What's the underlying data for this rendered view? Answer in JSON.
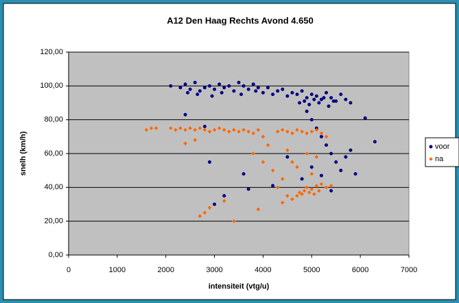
{
  "chart_data": {
    "type": "scatter",
    "title": "A12 Den Haag Rechts Avond  4.650",
    "x_label": "intensiteit (vtg/u)",
    "y_label": "snelh (km/h)",
    "xlim": [
      0,
      7000
    ],
    "xticks": [
      0,
      1000,
      2000,
      3000,
      4000,
      5000,
      6000,
      7000
    ],
    "ylim": [
      0,
      120
    ],
    "yticks": [
      {
        "value": 0,
        "label": "0,00"
      },
      {
        "value": 20,
        "label": "20,00"
      },
      {
        "value": 40,
        "label": "40,00"
      },
      {
        "value": 60,
        "label": "60,00"
      },
      {
        "value": 80,
        "label": "80,00"
      },
      {
        "value": 100,
        "label": "100,00"
      },
      {
        "value": 120,
        "label": "120,00"
      }
    ],
    "grid": true,
    "legend": "right",
    "plot_background": "#c0c0c0",
    "series": [
      {
        "name": "voor",
        "color": "#000080",
        "marker": "circle",
        "x": [
          2100,
          2300,
          2400,
          2500,
          2600,
          2700,
          2800,
          2900,
          3000,
          3100,
          3200,
          3300,
          3400,
          3500,
          3600,
          3700,
          3800,
          3900,
          2450,
          2650,
          2950,
          3150,
          3550,
          3850,
          4000,
          4100,
          4200,
          4300,
          4400,
          4500,
          4600,
          4700,
          4800,
          4900,
          5000,
          5100,
          5200,
          5300,
          5400,
          5500,
          5600,
          5700,
          5800,
          4750,
          4850,
          4950,
          5050,
          5150,
          5250,
          5350,
          5450,
          4900,
          5000,
          5100,
          5200,
          5300,
          5400,
          5500,
          5600,
          5700,
          5800,
          5900,
          6100,
          6300,
          2400,
          2800,
          2900,
          3000,
          3200,
          3600,
          3700,
          4200,
          4500,
          4800,
          5000,
          5200,
          5400
        ],
        "values": [
          100,
          99,
          101,
          98,
          102,
          97,
          99,
          100,
          98,
          101,
          99,
          100,
          97,
          102,
          100,
          98,
          101,
          99,
          96,
          95,
          94,
          96,
          95,
          97,
          96,
          99,
          95,
          97,
          98,
          94,
          96,
          95,
          97,
          93,
          95,
          94,
          92,
          96,
          93,
          91,
          95,
          92,
          90,
          90,
          91,
          89,
          92,
          90,
          93,
          88,
          91,
          85,
          80,
          75,
          70,
          65,
          60,
          55,
          50,
          58,
          62,
          48,
          81,
          67,
          83,
          76,
          55,
          30,
          35,
          48,
          39,
          41,
          58,
          45,
          52,
          47,
          38
        ]
      },
      {
        "name": "na",
        "color": "#ff6600",
        "marker": "diamond",
        "x": [
          1600,
          1700,
          1800,
          2100,
          2200,
          2300,
          2400,
          2500,
          2600,
          2700,
          2800,
          2900,
          3000,
          3100,
          3200,
          3300,
          3400,
          3500,
          3600,
          3700,
          3800,
          3900,
          4000,
          4300,
          4400,
          4500,
          4600,
          4700,
          4800,
          4900,
          5000,
          5100,
          5200,
          5300,
          4600,
          4700,
          4750,
          4800,
          4850,
          4900,
          4950,
          5000,
          5050,
          5100,
          5150,
          5200,
          5300,
          5400,
          2400,
          2600,
          3800,
          4000,
          4200,
          4100,
          4400,
          4500,
          4600,
          4900,
          5000,
          5100,
          4300,
          4700,
          2700,
          2800,
          2900,
          3200,
          3400,
          3900,
          4400,
          4500
        ],
        "values": [
          74,
          75,
          75,
          75,
          74,
          75,
          74,
          75,
          74,
          75,
          74,
          73,
          74,
          75,
          74,
          73,
          74,
          73,
          74,
          73,
          72,
          74,
          70,
          73,
          74,
          73,
          72,
          74,
          73,
          72,
          73,
          74,
          72,
          70,
          33,
          35,
          37,
          36,
          38,
          40,
          37,
          39,
          36,
          41,
          38,
          42,
          40,
          41,
          66,
          68,
          60,
          55,
          50,
          65,
          45,
          62,
          55,
          60,
          48,
          58,
          40,
          52,
          23,
          25,
          28,
          32,
          20,
          27,
          31,
          35
        ]
      }
    ]
  }
}
